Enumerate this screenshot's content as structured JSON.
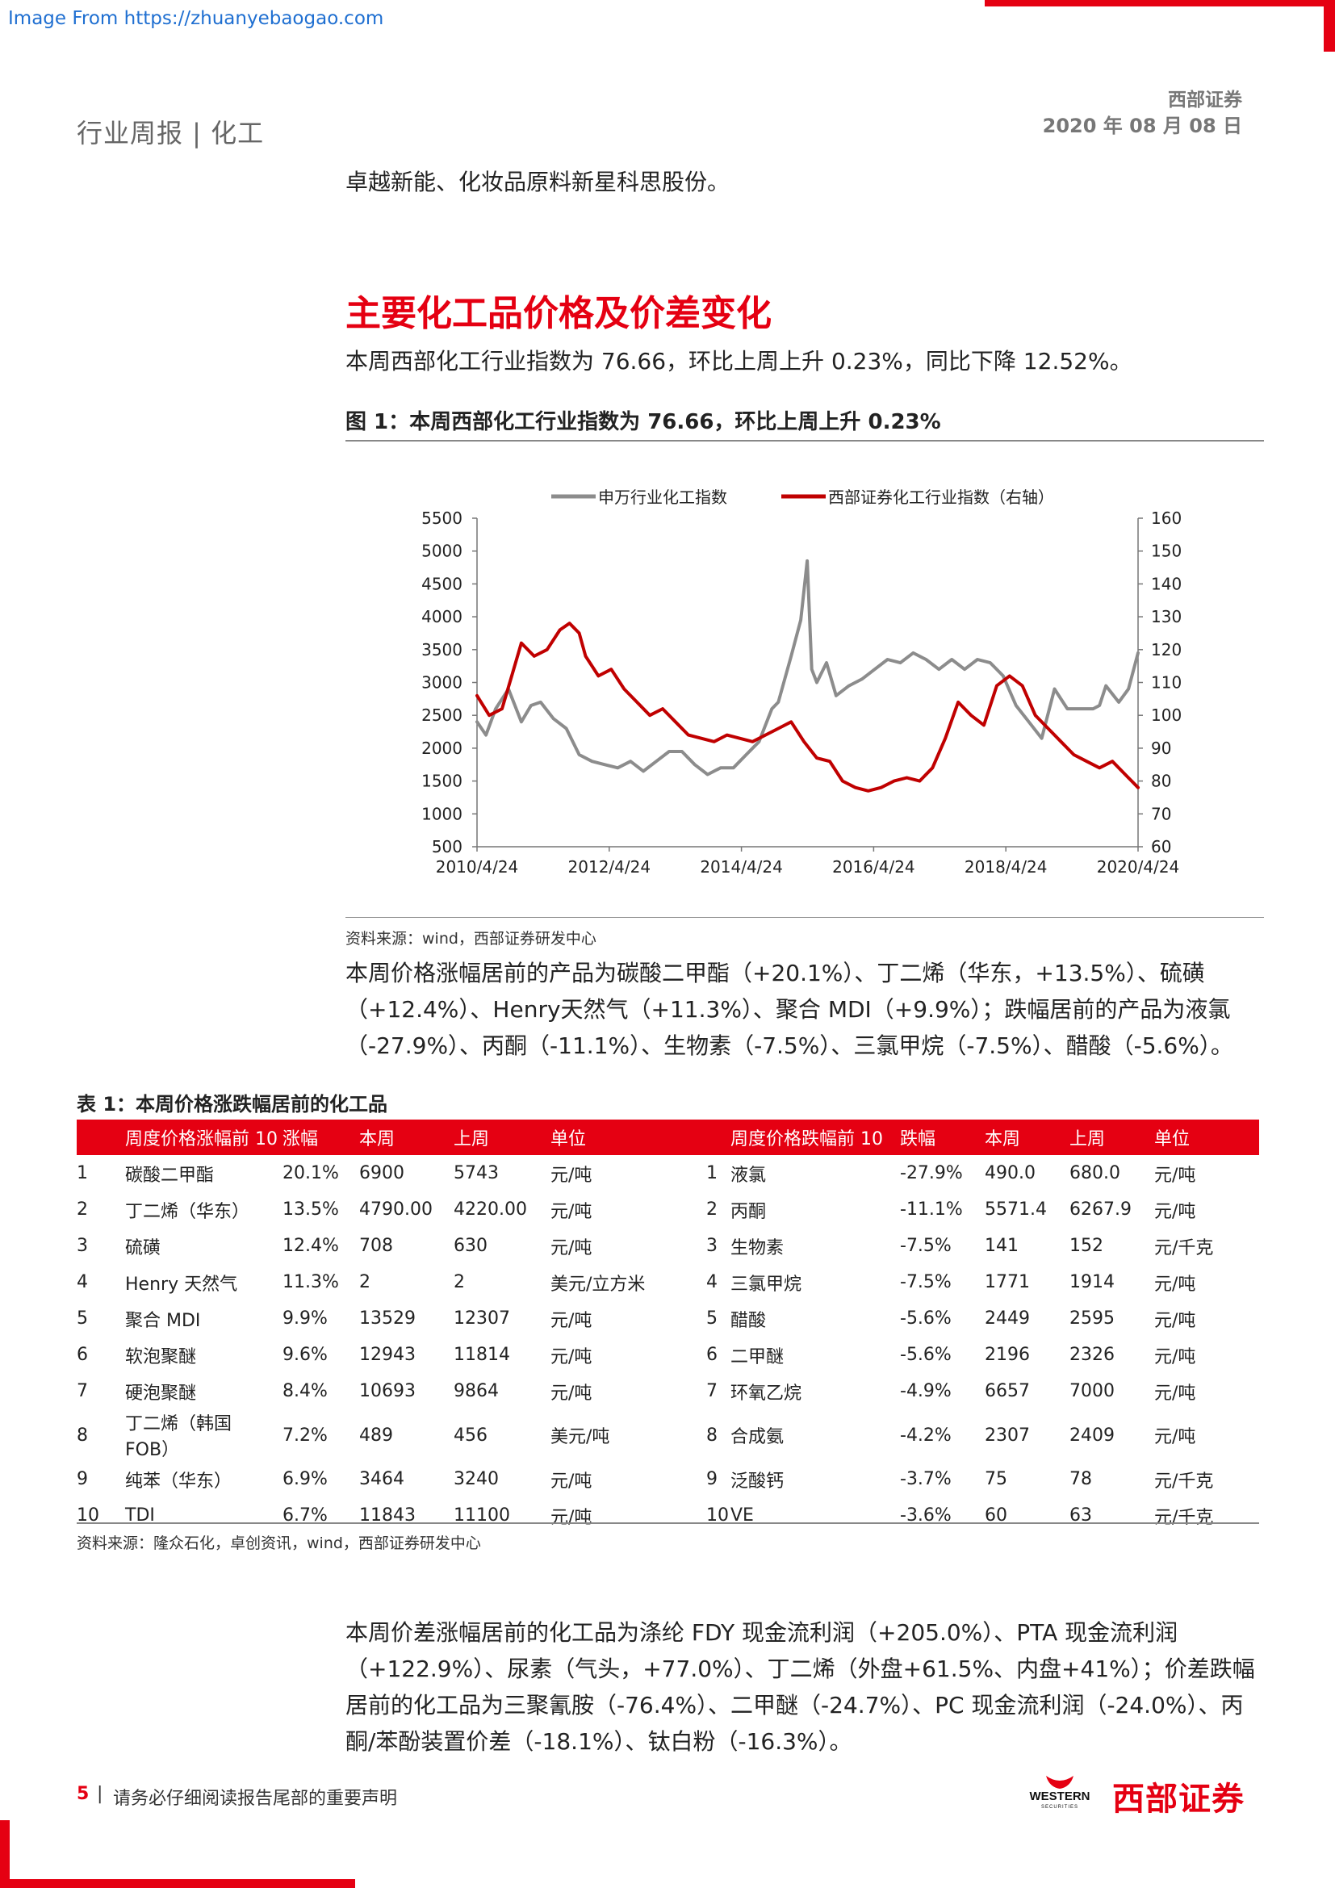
{
  "watermark": "Image From https://zhuanyebaogao.com",
  "header": {
    "category": "行业周报 | 化工",
    "broker": "西部证券",
    "date": "2020 年 08 月 08 日"
  },
  "intro_line": "卓越新能、化妆品原料新星科思股份。",
  "section_title": "主要化工品价格及价差变化",
  "para1": "本周西部化工行业指数为 76.66，环比上周上升 0.23%，同比下降 12.52%。",
  "figure": {
    "title": "图 1：本周西部化工行业指数为 76.66，环比上周上升 0.23%",
    "source": "资料来源：wind，西部证券研发中心"
  },
  "chart_data": {
    "type": "line",
    "title": "",
    "legend_position": "top-center",
    "grid": false,
    "x_tick_labels": [
      "2010/4/24",
      "2012/4/24",
      "2014/4/24",
      "2016/4/24",
      "2018/4/24",
      "2020/4/24"
    ],
    "x_range": [
      2010.31,
      2020.6
    ],
    "y_left": {
      "ylim": [
        500,
        5500
      ],
      "ticks": [
        500,
        1000,
        1500,
        2000,
        2500,
        3000,
        3500,
        4000,
        4500,
        5000,
        5500
      ]
    },
    "y_right": {
      "ylim": [
        60,
        160
      ],
      "ticks": [
        60,
        70,
        80,
        90,
        100,
        110,
        120,
        130,
        140,
        150,
        160
      ]
    },
    "series": [
      {
        "name": "申万行业化工指数",
        "axis": "left",
        "color": "#8c8c8c",
        "x": [
          2010.31,
          2010.45,
          2010.6,
          2010.8,
          2011.0,
          2011.15,
          2011.3,
          2011.5,
          2011.7,
          2011.9,
          2012.1,
          2012.3,
          2012.5,
          2012.7,
          2012.9,
          2013.1,
          2013.3,
          2013.5,
          2013.7,
          2013.9,
          2014.1,
          2014.3,
          2014.5,
          2014.7,
          2014.9,
          2015.0,
          2015.2,
          2015.35,
          2015.45,
          2015.52,
          2015.6,
          2015.75,
          2015.9,
          2016.1,
          2016.3,
          2016.5,
          2016.7,
          2016.9,
          2017.1,
          2017.3,
          2017.5,
          2017.7,
          2017.9,
          2018.1,
          2018.3,
          2018.5,
          2018.7,
          2018.9,
          2019.1,
          2019.3,
          2019.5,
          2019.7,
          2019.9,
          2020.0,
          2020.1,
          2020.3,
          2020.45,
          2020.6
        ],
        "y": [
          2400,
          2200,
          2600,
          2900,
          2400,
          2650,
          2700,
          2450,
          2300,
          1900,
          1800,
          1750,
          1700,
          1800,
          1650,
          1800,
          1950,
          1950,
          1750,
          1600,
          1700,
          1700,
          1900,
          2100,
          2600,
          2700,
          3400,
          3950,
          4850,
          3200,
          3000,
          3300,
          2800,
          2950,
          3050,
          3200,
          3350,
          3300,
          3450,
          3350,
          3200,
          3350,
          3200,
          3350,
          3300,
          3100,
          2650,
          2400,
          2150,
          2900,
          2600,
          2600,
          2600,
          2650,
          2950,
          2700,
          2900,
          3450
        ]
      },
      {
        "name": "西部证券化工行业指数（右轴）",
        "axis": "right",
        "color": "#c00000",
        "x": [
          2010.31,
          2010.5,
          2010.7,
          2010.85,
          2011.0,
          2011.2,
          2011.4,
          2011.6,
          2011.75,
          2011.9,
          2012.0,
          2012.2,
          2012.4,
          2012.6,
          2012.8,
          2013.0,
          2013.2,
          2013.4,
          2013.6,
          2013.8,
          2014.0,
          2014.2,
          2014.4,
          2014.6,
          2014.8,
          2015.0,
          2015.2,
          2015.4,
          2015.6,
          2015.8,
          2016.0,
          2016.2,
          2016.4,
          2016.6,
          2016.8,
          2017.0,
          2017.2,
          2017.4,
          2017.6,
          2017.8,
          2018.0,
          2018.2,
          2018.4,
          2018.6,
          2018.8,
          2019.0,
          2019.2,
          2019.4,
          2019.6,
          2019.8,
          2020.0,
          2020.2,
          2020.4,
          2020.6
        ],
        "y": [
          106,
          100,
          102,
          112,
          122,
          118,
          120,
          126,
          128,
          125,
          118,
          112,
          114,
          108,
          104,
          100,
          102,
          98,
          94,
          93,
          92,
          94,
          93,
          92,
          94,
          96,
          98,
          92,
          87,
          86,
          80,
          78,
          77,
          78,
          80,
          81,
          80,
          84,
          93,
          104,
          100,
          97,
          109,
          112,
          109,
          100,
          96,
          92,
          88,
          86,
          84,
          86,
          82,
          78
        ]
      }
    ]
  },
  "para2": "本周价格涨幅居前的产品为碳酸二甲酯（+20.1%）、丁二烯（华东，+13.5%）、硫磺（+12.4%）、Henry天然气（+11.3%）、聚合 MDI（+9.9%）；跌幅居前的产品为液氯（-27.9%）、丙酮（-11.1%）、生物素（-7.5%）、三氯甲烷（-7.5%）、醋酸（-5.6%）。",
  "table": {
    "title": "表 1：本周价格涨跌幅居前的化工品",
    "headers": [
      "",
      "周度价格涨幅前 10",
      "涨幅",
      "本周",
      "上周",
      "单位",
      "",
      "周度价格跌幅前 10",
      "跌幅",
      "本周",
      "上周",
      "单位"
    ],
    "rows": [
      [
        "1",
        "碳酸二甲酯",
        "20.1%",
        "6900",
        "5743",
        "元/吨",
        "1",
        "液氯",
        "-27.9%",
        "490.0",
        "680.0",
        "元/吨"
      ],
      [
        "2",
        "丁二烯（华东）",
        "13.5%",
        "4790.00",
        "4220.00",
        "元/吨",
        "2",
        "丙酮",
        "-11.1%",
        "5571.4",
        "6267.9",
        "元/吨"
      ],
      [
        "3",
        "硫磺",
        "12.4%",
        "708",
        "630",
        "元/吨",
        "3",
        "生物素",
        "-7.5%",
        "141",
        "152",
        "元/千克"
      ],
      [
        "4",
        "Henry 天然气",
        "11.3%",
        "2",
        "2",
        "美元/立方米",
        "4",
        "三氯甲烷",
        "-7.5%",
        "1771",
        "1914",
        "元/吨"
      ],
      [
        "5",
        "聚合 MDI",
        "9.9%",
        "13529",
        "12307",
        "元/吨",
        "5",
        "醋酸",
        "-5.6%",
        "2449",
        "2595",
        "元/吨"
      ],
      [
        "6",
        "软泡聚醚",
        "9.6%",
        "12943",
        "11814",
        "元/吨",
        "6",
        "二甲醚",
        "-5.6%",
        "2196",
        "2326",
        " 元/吨"
      ],
      [
        "7",
        "硬泡聚醚",
        "8.4%",
        "10693",
        "9864",
        "元/吨",
        "7",
        "环氧乙烷",
        "-4.9%",
        "6657",
        "7000",
        "元/吨"
      ],
      [
        "8",
        "丁二烯（韩国 FOB）",
        "7.2%",
        "489",
        "456",
        "美元/吨",
        "8",
        "合成氨",
        "-4.2%",
        "2307",
        "2409",
        "元/吨"
      ],
      [
        "9",
        "纯苯（华东）",
        "6.9%",
        "3464",
        "3240",
        "元/吨",
        "9",
        "泛酸钙",
        "-3.7%",
        "75",
        "78",
        "元/千克"
      ],
      [
        "10",
        "TDI",
        "6.7%",
        "11843",
        "11100",
        "元/吨",
        "10",
        "VE",
        "-3.6%",
        "60",
        "63",
        "元/千克"
      ]
    ],
    "source": "资料来源：隆众石化，卓创资讯，wind，西部证券研发中心"
  },
  "para3": "本周价差涨幅居前的化工品为涤纶 FDY 现金流利润（+205.0%）、PTA 现金流利润（+122.9%）、尿素（气头，+77.0%）、丁二烯（外盘+61.5%、内盘+41%）；价差跌幅居前的化工品为三聚氰胺（-76.4%）、二甲醚（-24.7%）、PC 现金流利润（-24.0%）、丙酮/苯酚装置价差（-18.1%）、钛白粉（-16.3%）。",
  "footer": {
    "page": "5",
    "sep": "|",
    "notice": "请务必仔细阅读报告尾部的重要声明",
    "logo_en": "WESTERN",
    "logo_en_sub": "SECURITIES",
    "logo_cn": "西部证券"
  }
}
